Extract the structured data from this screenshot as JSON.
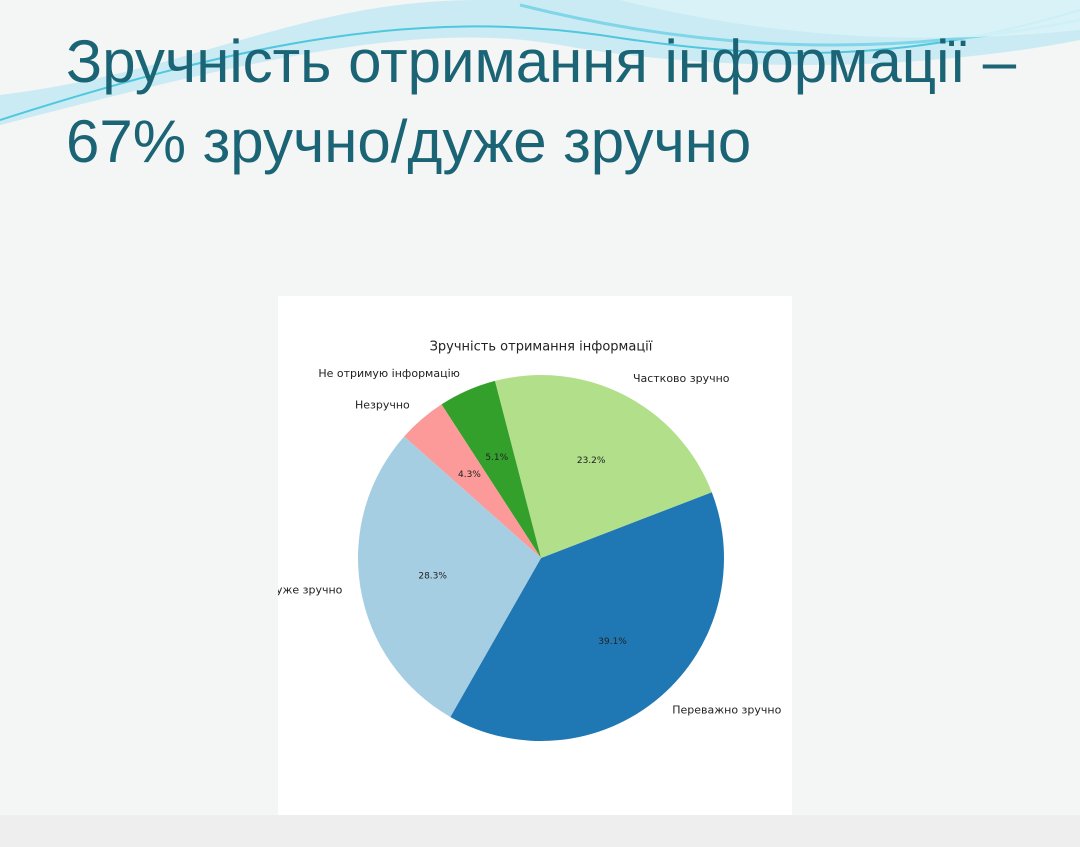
{
  "slide": {
    "title": "Зручність отримання інформації – 67% зручно/дуже зручно"
  },
  "chart_data": {
    "type": "pie",
    "title": "Зручність отримання інформації",
    "categories": [
      "Переважно зручно",
      "Частково зручно",
      "Не отримую інформацію",
      "Незручно",
      "Дуже зручно"
    ],
    "values": [
      39.1,
      23.2,
      5.1,
      4.3,
      28.3
    ],
    "value_labels": [
      "39.1%",
      "23.2%",
      "5.1%",
      "4.3%",
      "28.3%"
    ],
    "colors": [
      "#1f78b4",
      "#b2df8a",
      "#33a02c",
      "#fb9a99",
      "#a6cee3"
    ]
  }
}
